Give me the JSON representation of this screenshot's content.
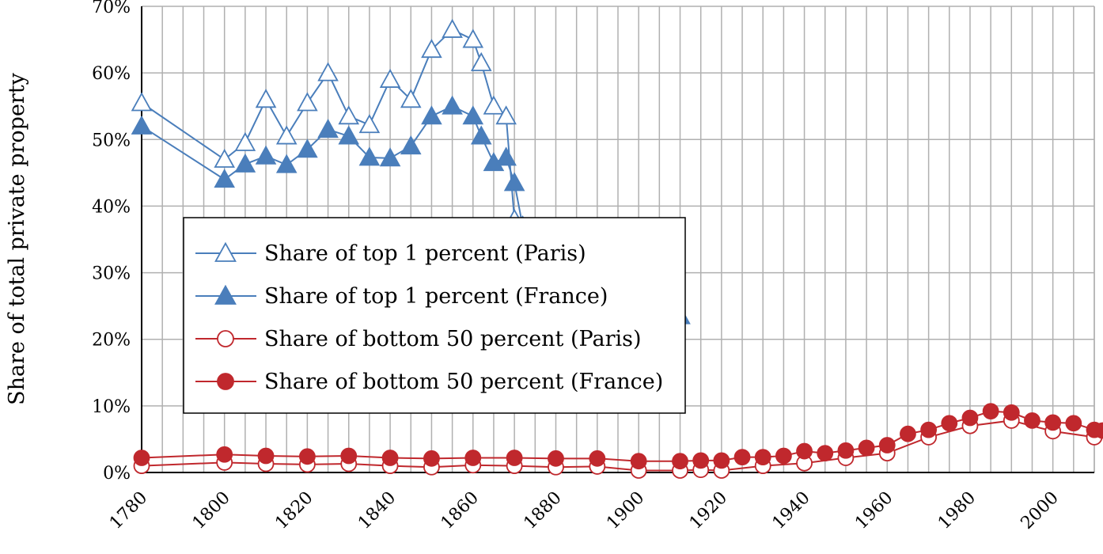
{
  "chart_data": {
    "type": "line",
    "ylabel": "Share of total private property",
    "xlabel": "",
    "xlim": [
      1780,
      2010
    ],
    "ylim": [
      0,
      70
    ],
    "x_ticks": [
      "1780",
      "1800",
      "1820",
      "1840",
      "1860",
      "1880",
      "1900",
      "1920",
      "1940",
      "1960",
      "1980",
      "2000"
    ],
    "y_ticks": [
      "0%",
      "10%",
      "20%",
      "30%",
      "40%",
      "50%",
      "60%",
      "70%"
    ],
    "grid": true,
    "legend_position": "center-left",
    "series": [
      {
        "name": "Share of top 1 percent (Paris)",
        "color": "#4a7ebb",
        "marker": "triangle-open",
        "points": [
          [
            1780,
            55.5
          ],
          [
            1800,
            47
          ],
          [
            1805,
            49.5
          ],
          [
            1810,
            56
          ],
          [
            1815,
            50.5
          ],
          [
            1820,
            55.5
          ],
          [
            1825,
            60
          ],
          [
            1830,
            53.5
          ],
          [
            1835,
            52.2
          ],
          [
            1840,
            59
          ],
          [
            1845,
            56
          ],
          [
            1850,
            63.5
          ],
          [
            1855,
            66.5
          ],
          [
            1860,
            65
          ],
          [
            1862,
            61.5
          ],
          [
            1865,
            55
          ],
          [
            1868,
            53.5
          ],
          [
            1870,
            38
          ],
          [
            1875,
            35.3
          ],
          [
            1880,
            31
          ],
          [
            1885,
            20.3
          ],
          [
            1890,
            19.7
          ],
          [
            1895,
            27.5
          ],
          [
            1900,
            25
          ],
          [
            1902,
            26
          ]
        ]
      },
      {
        "name": "Share of top 1 percent (France)",
        "color": "#4a7ebb",
        "marker": "triangle-filled",
        "points": [
          [
            1780,
            52
          ],
          [
            1800,
            44
          ],
          [
            1805,
            46.3
          ],
          [
            1810,
            47.5
          ],
          [
            1815,
            46.2
          ],
          [
            1820,
            48.5
          ],
          [
            1825,
            51.5
          ],
          [
            1830,
            50.5
          ],
          [
            1835,
            47.3
          ],
          [
            1840,
            47.2
          ],
          [
            1845,
            49
          ],
          [
            1850,
            53.5
          ],
          [
            1855,
            55
          ],
          [
            1860,
            53.5
          ],
          [
            1862,
            50.5
          ],
          [
            1865,
            46.5
          ],
          [
            1868,
            47.3
          ],
          [
            1870,
            43.5
          ],
          [
            1872,
            37
          ],
          [
            1875,
            34.4
          ],
          [
            1877,
            32.4
          ],
          [
            1880,
            31.6
          ],
          [
            1882,
            31.6
          ],
          [
            1885,
            29.5
          ],
          [
            1888,
            27
          ],
          [
            1890,
            19.5
          ],
          [
            1893,
            17.8
          ],
          [
            1896,
            16.4
          ],
          [
            1898,
            17.4
          ],
          [
            1900,
            21.5
          ],
          [
            1902,
            24.5
          ],
          [
            1905,
            23
          ],
          [
            1907,
            22.5
          ],
          [
            1910,
            23.5
          ]
        ]
      },
      {
        "name": "Share of bottom 50 percent (Paris)",
        "color": "#c0282d",
        "marker": "circle-open",
        "points": [
          [
            1780,
            1
          ],
          [
            1800,
            1.5
          ],
          [
            1810,
            1.3
          ],
          [
            1820,
            1.2
          ],
          [
            1830,
            1.3
          ],
          [
            1840,
            1
          ],
          [
            1850,
            0.8
          ],
          [
            1860,
            1.1
          ],
          [
            1870,
            1
          ],
          [
            1880,
            0.8
          ],
          [
            1890,
            0.9
          ],
          [
            1900,
            0.3
          ],
          [
            1910,
            0.3
          ],
          [
            1915,
            0.4
          ],
          [
            1920,
            0.3
          ],
          [
            1930,
            1
          ],
          [
            1940,
            1.4
          ],
          [
            1950,
            2.2
          ],
          [
            1960,
            2.9
          ],
          [
            1970,
            5.3
          ],
          [
            1980,
            7
          ],
          [
            1990,
            7.8
          ],
          [
            2000,
            6.2
          ],
          [
            2010,
            5.3
          ]
        ]
      },
      {
        "name": "Share of bottom 50 percent (France)",
        "color": "#c0282d",
        "marker": "circle-filled",
        "points": [
          [
            1780,
            2.2
          ],
          [
            1800,
            2.7
          ],
          [
            1810,
            2.5
          ],
          [
            1820,
            2.4
          ],
          [
            1830,
            2.5
          ],
          [
            1840,
            2.2
          ],
          [
            1850,
            2.1
          ],
          [
            1860,
            2.2
          ],
          [
            1870,
            2.2
          ],
          [
            1880,
            2.1
          ],
          [
            1890,
            2.1
          ],
          [
            1900,
            1.7
          ],
          [
            1910,
            1.7
          ],
          [
            1915,
            1.8
          ],
          [
            1920,
            1.8
          ],
          [
            1925,
            2.3
          ],
          [
            1930,
            2.3
          ],
          [
            1935,
            2.5
          ],
          [
            1940,
            3.2
          ],
          [
            1945,
            2.9
          ],
          [
            1950,
            3.3
          ],
          [
            1955,
            3.7
          ],
          [
            1960,
            4.1
          ],
          [
            1965,
            5.8
          ],
          [
            1970,
            6.4
          ],
          [
            1975,
            7.4
          ],
          [
            1980,
            8.2
          ],
          [
            1985,
            9.2
          ],
          [
            1990,
            9
          ],
          [
            1995,
            7.8
          ],
          [
            2000,
            7.5
          ],
          [
            2005,
            7.4
          ],
          [
            2010,
            6.4
          ],
          [
            2012,
            6.3
          ]
        ]
      }
    ]
  }
}
